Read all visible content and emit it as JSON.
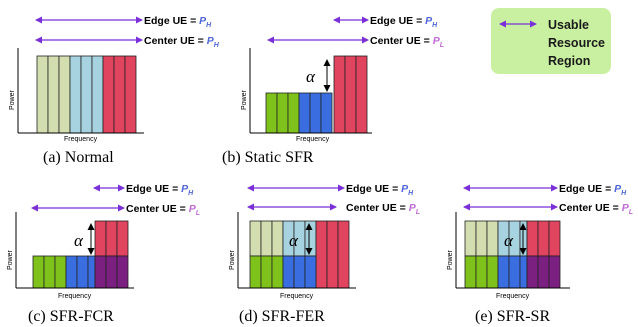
{
  "legend": {
    "line1": "Usable",
    "line2": "Resource",
    "line3": "Region",
    "box_color": "#c8f0a0",
    "arrow_color": "#7b2fd8"
  },
  "labels": {
    "edge_prefix": "Edge UE = ",
    "center_prefix": "Center UE = ",
    "p": "P",
    "sub_high": "H",
    "sub_low": "L",
    "power": "Power",
    "frequency": "Frequency",
    "alpha": "α"
  },
  "captions": {
    "a": "(a) Normal",
    "b": "(b) Static SFR",
    "c": "(c) SFR-FCR",
    "d": "(d) SFR-FER",
    "e": "(e) SFR-SR"
  },
  "colors": {
    "light_green": "#d3deb0",
    "light_blue": "#a6d3df",
    "red": "#e1445f",
    "green": "#7fc21c",
    "blue": "#3a6ee0",
    "purple": "#7b1f80",
    "ph_text": "#4f67d9",
    "pl_text": "#c06ad4"
  }
}
